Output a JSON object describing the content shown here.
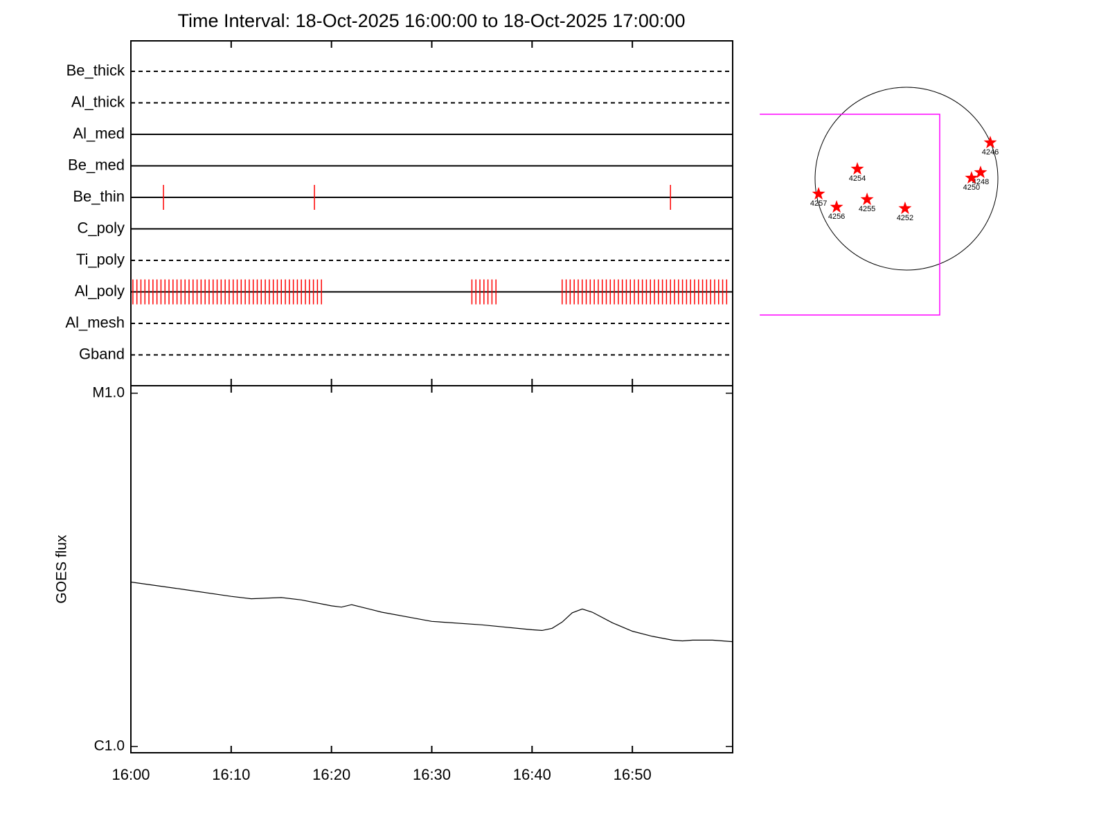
{
  "chart_data": [
    {
      "type": "timeline",
      "title": "Time Interval: 18-Oct-2025 16:00:00 to 18-Oct-2025 17:00:00",
      "xlim": [
        0,
        60
      ],
      "xticks": [
        {
          "value": 0,
          "label": "16:00"
        },
        {
          "value": 10,
          "label": "16:10"
        },
        {
          "value": 20,
          "label": "16:20"
        },
        {
          "value": 30,
          "label": "16:30"
        },
        {
          "value": 40,
          "label": "16:40"
        },
        {
          "value": 50,
          "label": "16:50"
        }
      ],
      "event_color": "#ff0000",
      "rows": [
        {
          "name": "Be_thick",
          "style": "dashed",
          "events": []
        },
        {
          "name": "Al_thick",
          "style": "dashed",
          "events": []
        },
        {
          "name": "Al_med",
          "style": "solid",
          "events": []
        },
        {
          "name": "Be_med",
          "style": "solid",
          "events": []
        },
        {
          "name": "Be_thin",
          "style": "solid",
          "events": [
            3.25,
            18.3,
            53.8
          ]
        },
        {
          "name": "C_poly",
          "style": "solid",
          "events": []
        },
        {
          "name": "Ti_poly",
          "style": "dashed",
          "events": []
        },
        {
          "name": "Al_poly",
          "style": "solid",
          "events": [
            0.2,
            0.6,
            1,
            1.4,
            1.8,
            2.2,
            2.6,
            3,
            3.4,
            3.8,
            4.2,
            4.6,
            5,
            5.4,
            5.8,
            6.2,
            6.6,
            7,
            7.4,
            7.8,
            8.2,
            8.6,
            9,
            9.4,
            9.8,
            10.2,
            10.6,
            11,
            11.4,
            11.8,
            12.2,
            12.6,
            13,
            13.4,
            13.8,
            14.2,
            14.6,
            15,
            15.4,
            15.8,
            16.2,
            16.6,
            17,
            17.4,
            17.8,
            18.2,
            18.6,
            19,
            34,
            34.4,
            34.8,
            35.2,
            35.6,
            36,
            36.4,
            43,
            43.4,
            43.8,
            44.2,
            44.6,
            45,
            45.4,
            45.8,
            46.2,
            46.6,
            47,
            47.4,
            47.8,
            48.2,
            48.6,
            49,
            49.4,
            49.8,
            50.2,
            50.6,
            51,
            51.4,
            51.8,
            52.2,
            52.6,
            53,
            53.4,
            53.8,
            54.2,
            54.6,
            55,
            55.4,
            55.8,
            56.2,
            56.6,
            57,
            57.4,
            57.8,
            58.2,
            58.6,
            59,
            59.4
          ]
        },
        {
          "name": "Al_mesh",
          "style": "dashed",
          "events": []
        },
        {
          "name": "Gband",
          "style": "dashed",
          "events": []
        }
      ]
    },
    {
      "type": "line",
      "y_label": "GOES flux",
      "log_y": true,
      "color": "#000000",
      "xlim": [
        0,
        60
      ],
      "xticks": [
        {
          "value": 0,
          "label": "16:00"
        },
        {
          "value": 10,
          "label": "16:10"
        },
        {
          "value": 20,
          "label": "16:20"
        },
        {
          "value": 30,
          "label": "16:30"
        },
        {
          "value": 40,
          "label": "16:40"
        },
        {
          "value": 50,
          "label": "16:50"
        }
      ],
      "ylim": [
        9.6e-07,
        1.05e-05
      ],
      "yticks": [
        {
          "value": 1e-06,
          "label": "C1.0"
        },
        {
          "value": 1e-05,
          "label": "M1.0"
        }
      ],
      "x": [
        0,
        5,
        10,
        12,
        15,
        17,
        20,
        21,
        22,
        24,
        25,
        30,
        35,
        40,
        41,
        42,
        43,
        44,
        45,
        46,
        48,
        50,
        52,
        54,
        55,
        56,
        58,
        60
      ],
      "values": [
        2.92e-06,
        2.79e-06,
        2.66e-06,
        2.62e-06,
        2.64e-06,
        2.6e-06,
        2.5e-06,
        2.48e-06,
        2.52e-06,
        2.44e-06,
        2.4e-06,
        2.26e-06,
        2.21e-06,
        2.14e-06,
        2.13e-06,
        2.16e-06,
        2.25e-06,
        2.39e-06,
        2.45e-06,
        2.4e-06,
        2.24e-06,
        2.12e-06,
        2.05e-06,
        2e-06,
        1.99e-06,
        2e-06,
        2e-06,
        1.98e-06
      ]
    },
    {
      "type": "sun-map",
      "radius": 960,
      "disk_color": "#000000",
      "marker_color": "#ff0000",
      "fov": {
        "x": [
          -1541,
          349
        ],
        "y": [
          -1432,
          676
        ],
        "color": "#ff00ff"
      },
      "regions": [
        {
          "name": "4246",
          "x": 880,
          "y": 378
        },
        {
          "name": "4248",
          "x": 778,
          "y": 65
        },
        {
          "name": "4250",
          "x": 683,
          "y": 7
        },
        {
          "name": "4254",
          "x": -516,
          "y": 102
        },
        {
          "name": "4257",
          "x": -923,
          "y": -160
        },
        {
          "name": "4256",
          "x": -734,
          "y": -298
        },
        {
          "name": "4255",
          "x": -414,
          "y": -218
        },
        {
          "name": "4252",
          "x": -15,
          "y": -313
        }
      ]
    }
  ]
}
